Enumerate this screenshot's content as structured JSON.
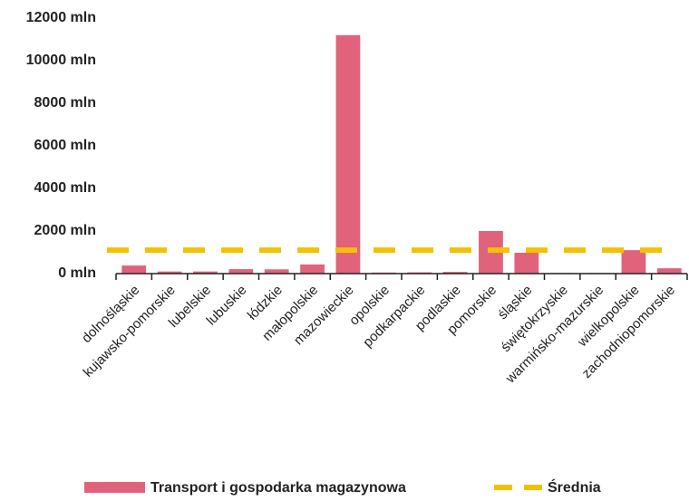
{
  "chart_data": {
    "type": "bar",
    "categories": [
      "dolnośląskie",
      "kujawsko-pomorskie",
      "lubelskie",
      "lubuskie",
      "łódzkie",
      "małopolskie",
      "mazowieckie",
      "opolskie",
      "podkarpackie",
      "podlaskie",
      "pomorskie",
      "śląskie",
      "świętokrzyskie",
      "warmińsko-mazurskie",
      "wielkopolskie",
      "zachodniopomorskie"
    ],
    "series": [
      {
        "name": "Transport i gospodarka magazynowa",
        "color": "#e0637b",
        "values": [
          380,
          100,
          100,
          210,
          200,
          430,
          11200,
          50,
          60,
          80,
          2000,
          980,
          30,
          30,
          1100,
          250
        ]
      }
    ],
    "average": {
      "name": "Średnia",
      "value": 1100,
      "color": "#f5c000"
    },
    "ylim": [
      0,
      12000
    ],
    "yticks": [
      {
        "value": 0,
        "label": "0 mln"
      },
      {
        "value": 2000,
        "label": "2000 mln"
      },
      {
        "value": 4000,
        "label": "4000 mln"
      },
      {
        "value": 6000,
        "label": "6000 mln"
      },
      {
        "value": 8000,
        "label": "8000 mln"
      },
      {
        "value": 10000,
        "label": "10000 mln"
      },
      {
        "value": 12000,
        "label": "12000 mln"
      }
    ],
    "grid": false
  }
}
